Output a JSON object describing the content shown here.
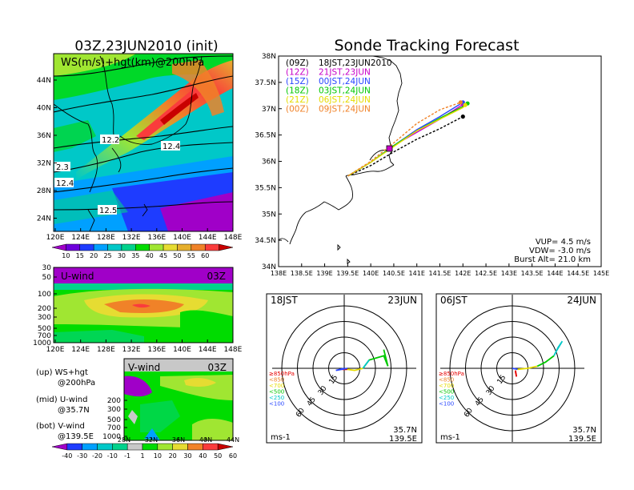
{
  "left": {
    "title": "03Z,23JUN2010 (init)",
    "map": {
      "label": "WS(m/s)+hgt(km)@200hPa",
      "lat_ticks": [
        "44N",
        "40N",
        "36N",
        "32N",
        "28N",
        "24N"
      ],
      "lon_ticks": [
        "120E",
        "124E",
        "128E",
        "132E",
        "136E",
        "140E",
        "144E",
        "148E"
      ],
      "contour_labels": [
        "12.2",
        "12.4",
        "2.3",
        "12.4",
        "12.5"
      ]
    },
    "colorbar_ws": {
      "ticks": [
        "10",
        "15",
        "20",
        "25",
        "30",
        "35",
        "40",
        "45",
        "50",
        "55",
        "60"
      ],
      "colors": [
        "#a000c8",
        "#6e00dc",
        "#1e3cff",
        "#00a0ff",
        "#00c8c8",
        "#00d28c",
        "#00dc00",
        "#a0e632",
        "#e6dc32",
        "#e6af2d",
        "#f08228",
        "#fa3c3c",
        "#c80000"
      ]
    },
    "uwind": {
      "label": "U-wind",
      "time": "03Z",
      "p_ticks": [
        "30",
        "50",
        "100",
        "200",
        "300",
        "500",
        "700",
        "1000"
      ],
      "lon_ticks": [
        "120E",
        "124E",
        "128E",
        "132E",
        "136E",
        "140E",
        "144E",
        "148E"
      ]
    },
    "vwind": {
      "label": "V-wind",
      "time": "03Z",
      "p_ticks": [
        "200",
        "300",
        "500",
        "700",
        "1000"
      ],
      "lat_ticks": [
        "28N",
        "32N",
        "36N",
        "40N",
        "44N"
      ]
    },
    "legend_lines": [
      "(up) WS+hgt",
      "@200hPa",
      "(mid) U-wind",
      "@35.7N",
      "(bot) V-wind",
      "@139.5E"
    ],
    "colorbar_uv": {
      "ticks": [
        "-40",
        "-30",
        "-20",
        "-10",
        "-1",
        "1",
        "10",
        "20",
        "30",
        "40",
        "50",
        "60"
      ],
      "colors": [
        "#a000c8",
        "#1e3cff",
        "#00a0ff",
        "#00c8c8",
        "#00d28c",
        "#c8c8c8",
        "#00dc00",
        "#a0e632",
        "#e6dc32",
        "#f08228",
        "#fa3c3c",
        "#c80000"
      ]
    }
  },
  "right": {
    "title": "Sonde Tracking Forecast",
    "map": {
      "lat_ticks": [
        "38N",
        "37.5N",
        "37N",
        "36.5N",
        "36N",
        "35.5N",
        "35N",
        "34.5N",
        "34N"
      ],
      "lon_ticks": [
        "138E",
        "138.5E",
        "139E",
        "139.5E",
        "140E",
        "140.5E",
        "141E",
        "141.5E",
        "142E",
        "142.5E",
        "143E",
        "143.5E",
        "144E",
        "144.5E",
        "145E"
      ],
      "runs": [
        {
          "code": "(09Z)",
          "text": "18JST,23JUN2010",
          "color": "#000000"
        },
        {
          "code": "(12Z)",
          "text": "21JST,23JUN",
          "color": "#c800c8"
        },
        {
          "code": "(15Z)",
          "text": "00JST,24JUN",
          "color": "#2846ff"
        },
        {
          "code": "(18Z)",
          "text": "03JST,24JUN",
          "color": "#00c800"
        },
        {
          "code": "(21Z)",
          "text": "06JST,24JUN",
          "color": "#e6dc00"
        },
        {
          "code": "(00Z)",
          "text": "09JST,24JUN",
          "color": "#f08228"
        }
      ],
      "params": [
        "VUP= 4.5 m/s",
        "VDW= -3.0 m/s",
        "Burst Alt= 21.0 km"
      ]
    },
    "hodo1": {
      "time": "18JST",
      "date": "23JUN",
      "rings": [
        "15",
        "30",
        "45",
        "60"
      ],
      "unit": "ms-1",
      "loc1": "35.7N",
      "loc2": "139.5E"
    },
    "hodo2": {
      "time": "06JST",
      "date": "24JUN",
      "rings": [
        "15",
        "30",
        "45",
        "60"
      ],
      "unit": "ms-1",
      "loc1": "35.7N",
      "loc2": "139.5E"
    },
    "hodo_legend": [
      {
        "label": "≥850hPa",
        "color": "#e60000"
      },
      {
        "label": "<850",
        "color": "#f08228"
      },
      {
        "label": "<700",
        "color": "#e6dc00"
      },
      {
        "label": "<500",
        "color": "#00c800"
      },
      {
        "label": "<250",
        "color": "#00c8c8"
      },
      {
        "label": "<100",
        "color": "#2846ff"
      }
    ]
  },
  "chart_data": [
    {
      "type": "line",
      "title": "Sonde Tracking Forecast",
      "xlabel": "",
      "ylabel": "",
      "xlim": [
        138,
        145
      ],
      "ylim": [
        34,
        38
      ],
      "series": [
        {
          "name": "(09Z) 18JST,23JUN2010",
          "color": "#000000",
          "x": [
            139.5,
            140.0,
            140.5,
            141.0,
            141.5,
            142.0
          ],
          "y": [
            35.72,
            35.92,
            36.18,
            36.42,
            36.62,
            36.85
          ]
        },
        {
          "name": "(12Z) 21JST,23JUN",
          "color": "#c800c8",
          "x": [
            139.5,
            140.0,
            140.5,
            141.0,
            141.5,
            142.0
          ],
          "y": [
            35.72,
            35.98,
            36.3,
            36.55,
            36.8,
            37.08
          ]
        },
        {
          "name": "(15Z) 00JST,24JUN",
          "color": "#2846ff",
          "x": [
            139.5,
            140.0,
            140.5,
            141.0,
            141.5,
            142.0
          ],
          "y": [
            35.72,
            35.98,
            36.3,
            36.6,
            36.85,
            37.12
          ]
        },
        {
          "name": "(18Z) 03JST,24JUN",
          "color": "#00c800",
          "x": [
            139.5,
            140.0,
            140.5,
            141.0,
            141.5,
            142.0,
            142.1
          ],
          "y": [
            35.72,
            35.98,
            36.3,
            36.58,
            36.82,
            37.04,
            37.1
          ]
        },
        {
          "name": "(21Z) 06JST,24JUN",
          "color": "#e6dc00",
          "x": [
            139.5,
            140.0,
            140.5,
            141.0,
            141.5,
            142.0,
            142.05
          ],
          "y": [
            35.72,
            35.98,
            36.28,
            36.58,
            36.8,
            37.02,
            37.07
          ]
        },
        {
          "name": "(00Z) 09JST,24JUN",
          "color": "#f08228",
          "x": [
            139.5,
            140.0,
            140.5,
            141.0,
            141.5,
            141.95
          ],
          "y": [
            35.72,
            36.0,
            36.35,
            36.72,
            36.98,
            37.12
          ]
        }
      ]
    },
    {
      "type": "line",
      "title": "18JST 23JUN hodograph",
      "series": [
        {
          "name": "≥850hPa",
          "color": "#e60000",
          "u": [
            0,
            -2,
            3
          ],
          "v": [
            0,
            -1,
            -1
          ]
        },
        {
          "name": "<700",
          "color": "#e6dc00",
          "u": [
            3,
            10,
            18
          ],
          "v": [
            -1,
            -2,
            0
          ]
        },
        {
          "name": "<500",
          "color": "#00c800",
          "u": [
            18,
            24,
            38,
            42,
            38
          ],
          "v": [
            0,
            8,
            12,
            2,
            18
          ]
        },
        {
          "name": "<250",
          "color": "#00c8c8",
          "u": [
            18,
            24
          ],
          "v": [
            0,
            8
          ]
        },
        {
          "name": "<100",
          "color": "#2846ff",
          "u": [
            0,
            -8,
            3
          ],
          "v": [
            0,
            -2,
            0
          ]
        }
      ]
    },
    {
      "type": "line",
      "title": "06JST 24JUN hodograph",
      "series": [
        {
          "name": "≥850hPa",
          "color": "#e60000",
          "u": [
            3,
            4,
            3
          ],
          "v": [
            -2,
            -8,
            -3
          ]
        },
        {
          "name": "<700",
          "color": "#e6dc00",
          "u": [
            5,
            15,
            24
          ],
          "v": [
            -1,
            0,
            2
          ]
        },
        {
          "name": "<500",
          "color": "#00c800",
          "u": [
            24,
            32,
            40
          ],
          "v": [
            2,
            6,
            12
          ]
        },
        {
          "name": "<250",
          "color": "#00c8c8",
          "u": [
            40,
            44,
            48,
            42
          ],
          "v": [
            12,
            20,
            26,
            16
          ]
        },
        {
          "name": "<100",
          "color": "#2846ff",
          "u": [
            0,
            5
          ],
          "v": [
            0,
            -1
          ]
        }
      ]
    }
  ]
}
